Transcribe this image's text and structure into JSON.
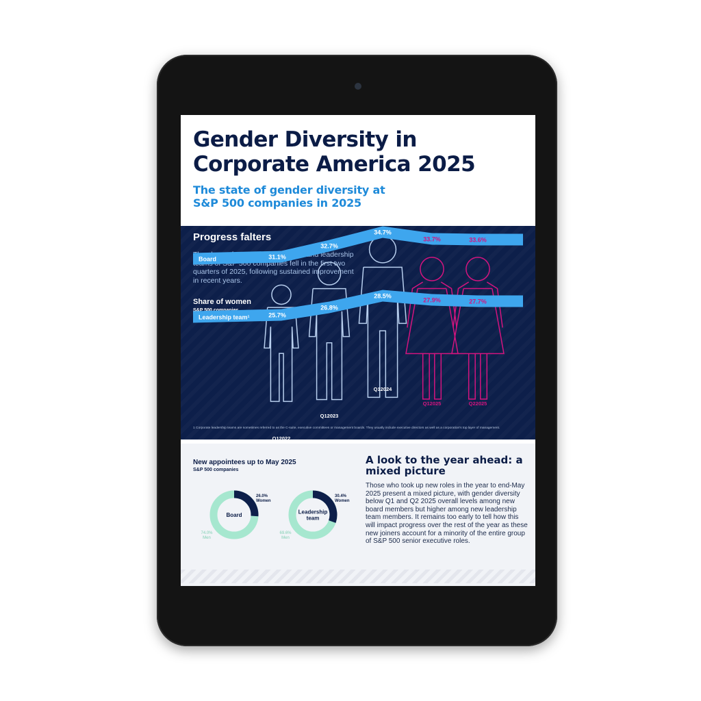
{
  "header": {
    "title": "Gender Diversity in Corporate America 2025",
    "subtitle": "The state of gender diversity at S&P 500 companies in 2025"
  },
  "progress": {
    "title": "Progress falters",
    "intro": "The share of women on the boards and leadership teams of S&P 500 companies fell in the first two quarters of 2025, following sustained improvement in recent years.",
    "chart_title": "Share of women",
    "chart_subtitle": "S&P 500 companies",
    "footnote": "1   Corporate leadership teams are sometimes referred to as the C-suite, executive committees or management boards. They usually include executive directors as well as a corporation's top layer of management."
  },
  "chart_data": [
    {
      "type": "line",
      "title": "Share of women",
      "subtitle": "S&P 500 companies",
      "categories": [
        "Q1 2022",
        "Q1 2023",
        "Q1 2024",
        "Q1 2025",
        "Q2 2025"
      ],
      "series": [
        {
          "name": "Board",
          "values": [
            31.1,
            32.7,
            34.7,
            33.7,
            33.6
          ],
          "labels": [
            "31.1%",
            "32.7%",
            "34.7%",
            "33.7%",
            "33.6%"
          ]
        },
        {
          "name": "Leadership team¹",
          "values": [
            25.7,
            26.8,
            28.5,
            27.9,
            27.7
          ],
          "labels": [
            "25.7%",
            "26.8%",
            "28.5%",
            "27.9%",
            "27.7%"
          ]
        }
      ],
      "colors": {
        "band": "#3ea6ee",
        "past": "#b8cfee",
        "recent": "#d4147f",
        "background": "#0d1f4a"
      }
    },
    {
      "type": "pie",
      "title": "New appointees up to May 2025",
      "subtitle": "S&P 500 companies",
      "charts": [
        {
          "name": "Board",
          "women": 26.0,
          "men": 74.0,
          "women_label": "26.0%",
          "men_label": "74.0%"
        },
        {
          "name": "Leadership team",
          "women": 30.4,
          "men": 69.6,
          "women_label": "30.4%",
          "men_label": "69.6%"
        }
      ],
      "legend": {
        "women": "Women",
        "men": "Men"
      },
      "colors": {
        "women": "#0d1f4a",
        "men": "#a6e7cf"
      }
    }
  ],
  "appointees": {
    "title": "New appointees up to May 2025",
    "subtitle": "S&P 500 companies"
  },
  "outlook": {
    "title": "A look to the year ahead: a mixed picture",
    "body": "Those who took up new roles in the year to end-May 2025 present a mixed picture, with gender diversity below Q1 and Q2 2025 overall levels among new board members but higher among new leadership team members. It remains too early to tell how this will impact progress over the rest of the year as these new joiners account for a minority of the entire group of S&P 500 senior executive roles."
  }
}
